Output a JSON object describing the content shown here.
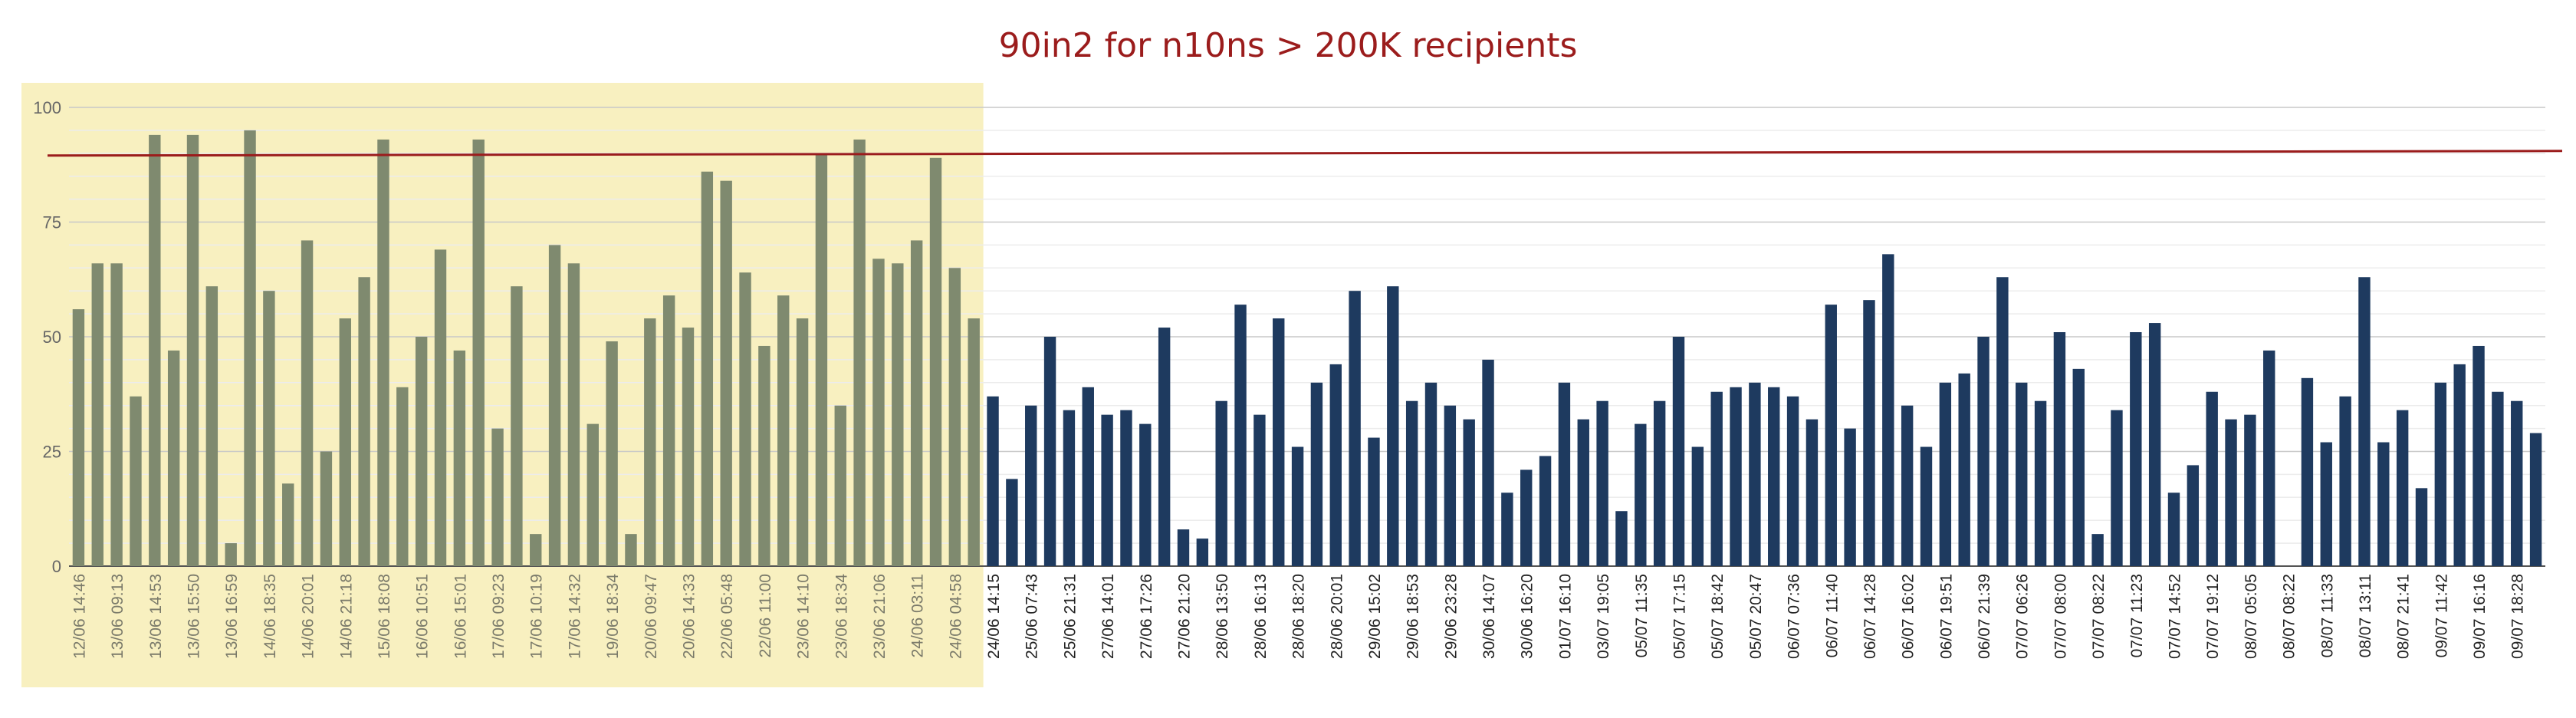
{
  "chart_data": {
    "type": "bar",
    "title": "90in2 for n10ns > 200K recipients",
    "xlabel": "",
    "ylabel": "",
    "ylim": [
      0,
      100
    ],
    "yticks": [
      0,
      25,
      50,
      75,
      100
    ],
    "grid": true,
    "legend": "none",
    "reference_line": {
      "from": 89.5,
      "to": 90.5
    },
    "highlight_until_index": 47,
    "colors": {
      "bar": "#1e3a5f",
      "bar_highlighted": "#7f8a6f",
      "highlight_band": "#f8f0c0",
      "reference_line": "#9b1c1c",
      "gridline": "#e3e3e3",
      "title": "#9b1c1c"
    },
    "tick_labels": [
      "12/06 14:46",
      "13/06 09:13",
      "13/06 14:53",
      "13/06 15:50",
      "13/06 16:59",
      "14/06 18:35",
      "14/06 20:01",
      "14/06 21:18",
      "15/06 18:08",
      "16/06 10:51",
      "16/06 15:01",
      "17/06 09:23",
      "17/06 10:19",
      "17/06 14:32",
      "19/06 18:34",
      "20/06 09:47",
      "20/06 14:33",
      "22/06 05:48",
      "22/06 11:00",
      "23/06 14:10",
      "23/06 18:34",
      "23/06 21:06",
      "24/06 03:11",
      "24/06 04:58",
      "24/06 14:15",
      "25/06 07:43",
      "25/06 21:31",
      "27/06 14:01",
      "27/06 17:26",
      "27/06 21:20",
      "28/06 13:50",
      "28/06 16:13",
      "28/06 18:20",
      "28/06 20:01",
      "29/06 15:02",
      "29/06 18:53",
      "29/06 23:28",
      "30/06 14:07",
      "30/06 16:20",
      "01/07 16:10",
      "03/07 19:05",
      "05/07 11:35",
      "05/07 17:15",
      "05/07 18:42",
      "05/07 20:47",
      "06/07 07:36",
      "06/07 11:40",
      "06/07 14:28",
      "06/07 16:02",
      "06/07 19:51",
      "06/07 21:39",
      "07/07 06:26",
      "07/07 08:00",
      "07/07 08:22",
      "07/07 11:23",
      "07/07 14:52",
      "07/07 19:12",
      "08/07 05:05",
      "08/07 08:22",
      "08/07 11:33",
      "08/07 13:11",
      "08/07 21:41",
      "09/07 11:42",
      "09/07 16:16",
      "09/07 18:28"
    ],
    "values": [
      56,
      66,
      66,
      37,
      94,
      47,
      94,
      61,
      5,
      95,
      60,
      18,
      71,
      25,
      54,
      63,
      93,
      39,
      50,
      69,
      47,
      93,
      30,
      61,
      7,
      70,
      66,
      31,
      49,
      7,
      54,
      59,
      52,
      86,
      84,
      64,
      48,
      59,
      54,
      90,
      35,
      93,
      67,
      66,
      71,
      89,
      65,
      54,
      37,
      19,
      35,
      50,
      34,
      39,
      33,
      34,
      31,
      52,
      8,
      6,
      36,
      57,
      33,
      54,
      26,
      40,
      44,
      60,
      28,
      61,
      36,
      40,
      35,
      32,
      45,
      16,
      21,
      24,
      40,
      32,
      36,
      12,
      31,
      36,
      50,
      26,
      38,
      39,
      40,
      39,
      37,
      32,
      57,
      30,
      58,
      68,
      35,
      26,
      40,
      42,
      50,
      63,
      40,
      36,
      51,
      43,
      7,
      34,
      51,
      53,
      16,
      22,
      38,
      32,
      33,
      47,
      0,
      41,
      27,
      37,
      63,
      27,
      34,
      17,
      40,
      44,
      48,
      38,
      36,
      29
    ]
  }
}
